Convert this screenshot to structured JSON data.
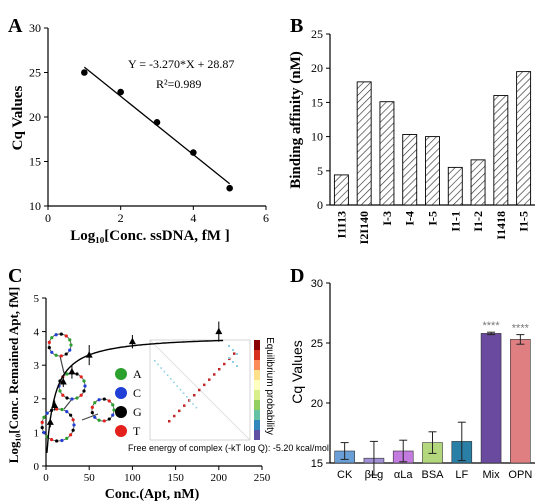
{
  "panels": {
    "a": {
      "letter": "A"
    },
    "b": {
      "letter": "B"
    },
    "c": {
      "letter": "C"
    },
    "d": {
      "letter": "D"
    }
  },
  "chart_data": [
    {
      "panel": "A",
      "type": "scatter",
      "x": [
        1,
        2,
        3,
        4,
        5
      ],
      "y": [
        25.0,
        22.8,
        19.4,
        16.0,
        12.0
      ],
      "fit_line": {
        "x": [
          1,
          5
        ],
        "y": [
          25.6,
          12.5
        ]
      },
      "equation": "Y = -3.270*X + 28.87",
      "r2": "R²=0.989",
      "xlabel": "Log₁₀[Conc. ssDNA, fM ]",
      "ylabel": "Cq Values",
      "xticks": [
        "0",
        "2",
        "4",
        "6"
      ],
      "yticks": [
        "10",
        "15",
        "20",
        "25",
        "30"
      ],
      "xlim": [
        0,
        6
      ],
      "ylim": [
        10,
        30
      ]
    },
    {
      "panel": "B",
      "type": "bar",
      "categories": [
        "I1I13",
        "I2I140",
        "I-3",
        "I-4",
        "I-5",
        "I1-1",
        "I1-2",
        "I1418",
        "I1-5"
      ],
      "values": [
        4.4,
        18.0,
        15.1,
        10.3,
        10.0,
        5.5,
        6.6,
        16.0,
        19.5
      ],
      "ylabel": "Binding affinity (nM)",
      "yticks": [
        "0",
        "5",
        "10",
        "15",
        "20",
        "25"
      ],
      "ylim": [
        0,
        25
      ],
      "bar_fill": "hatched"
    },
    {
      "panel": "C",
      "type": "scatter",
      "x": [
        5,
        10,
        20,
        30,
        50,
        100,
        200
      ],
      "y": [
        1.3,
        1.8,
        2.5,
        2.8,
        3.3,
        3.7,
        4.0
      ],
      "errors": [
        0.15,
        0.15,
        0.15,
        0.2,
        0.3,
        0.2,
        0.3
      ],
      "fit_curve": "saturation",
      "xlabel": "Conc.(Apt, nM)",
      "ylabel": "Log₁₀[Conc. Remained Apt, fM]",
      "xticks": [
        "0",
        "50",
        "100",
        "150",
        "200",
        "250"
      ],
      "yticks": [
        "0",
        "1",
        "2",
        "3",
        "4",
        "5"
      ],
      "xlim": [
        0,
        250
      ],
      "ylim": [
        0,
        5
      ],
      "legend": [
        {
          "label": "A",
          "color": "#2ca02c"
        },
        {
          "label": "C",
          "color": "#1f3fd6"
        },
        {
          "label": "G",
          "color": "#000000"
        },
        {
          "label": "T",
          "color": "#e3201b"
        }
      ],
      "inset_caption": "Free energy of complex (-kT log Q): -5.20 kcal/mol",
      "colorbar_label": "Equilibrium probability"
    },
    {
      "panel": "D",
      "type": "bar",
      "categories": [
        "CK",
        "βLg",
        "αLa",
        "BSA",
        "LF",
        "Mix",
        "OPN"
      ],
      "values": [
        16.0,
        15.4,
        16.0,
        16.7,
        16.8,
        25.8,
        25.3
      ],
      "errors": [
        0.7,
        1.4,
        0.9,
        0.9,
        1.6,
        0.1,
        0.4
      ],
      "colors": [
        "#6a9ed6",
        "#a190d6",
        "#c47be0",
        "#b3d77c",
        "#2a7fa6",
        "#6a4a9e",
        "#e07f82"
      ],
      "significance": [
        "",
        "",
        "",
        "",
        "",
        "****",
        "****"
      ],
      "ylabel": "Cq Values",
      "yticks": [
        "15",
        "20",
        "25",
        "30"
      ],
      "ylim": [
        15,
        30
      ]
    }
  ]
}
